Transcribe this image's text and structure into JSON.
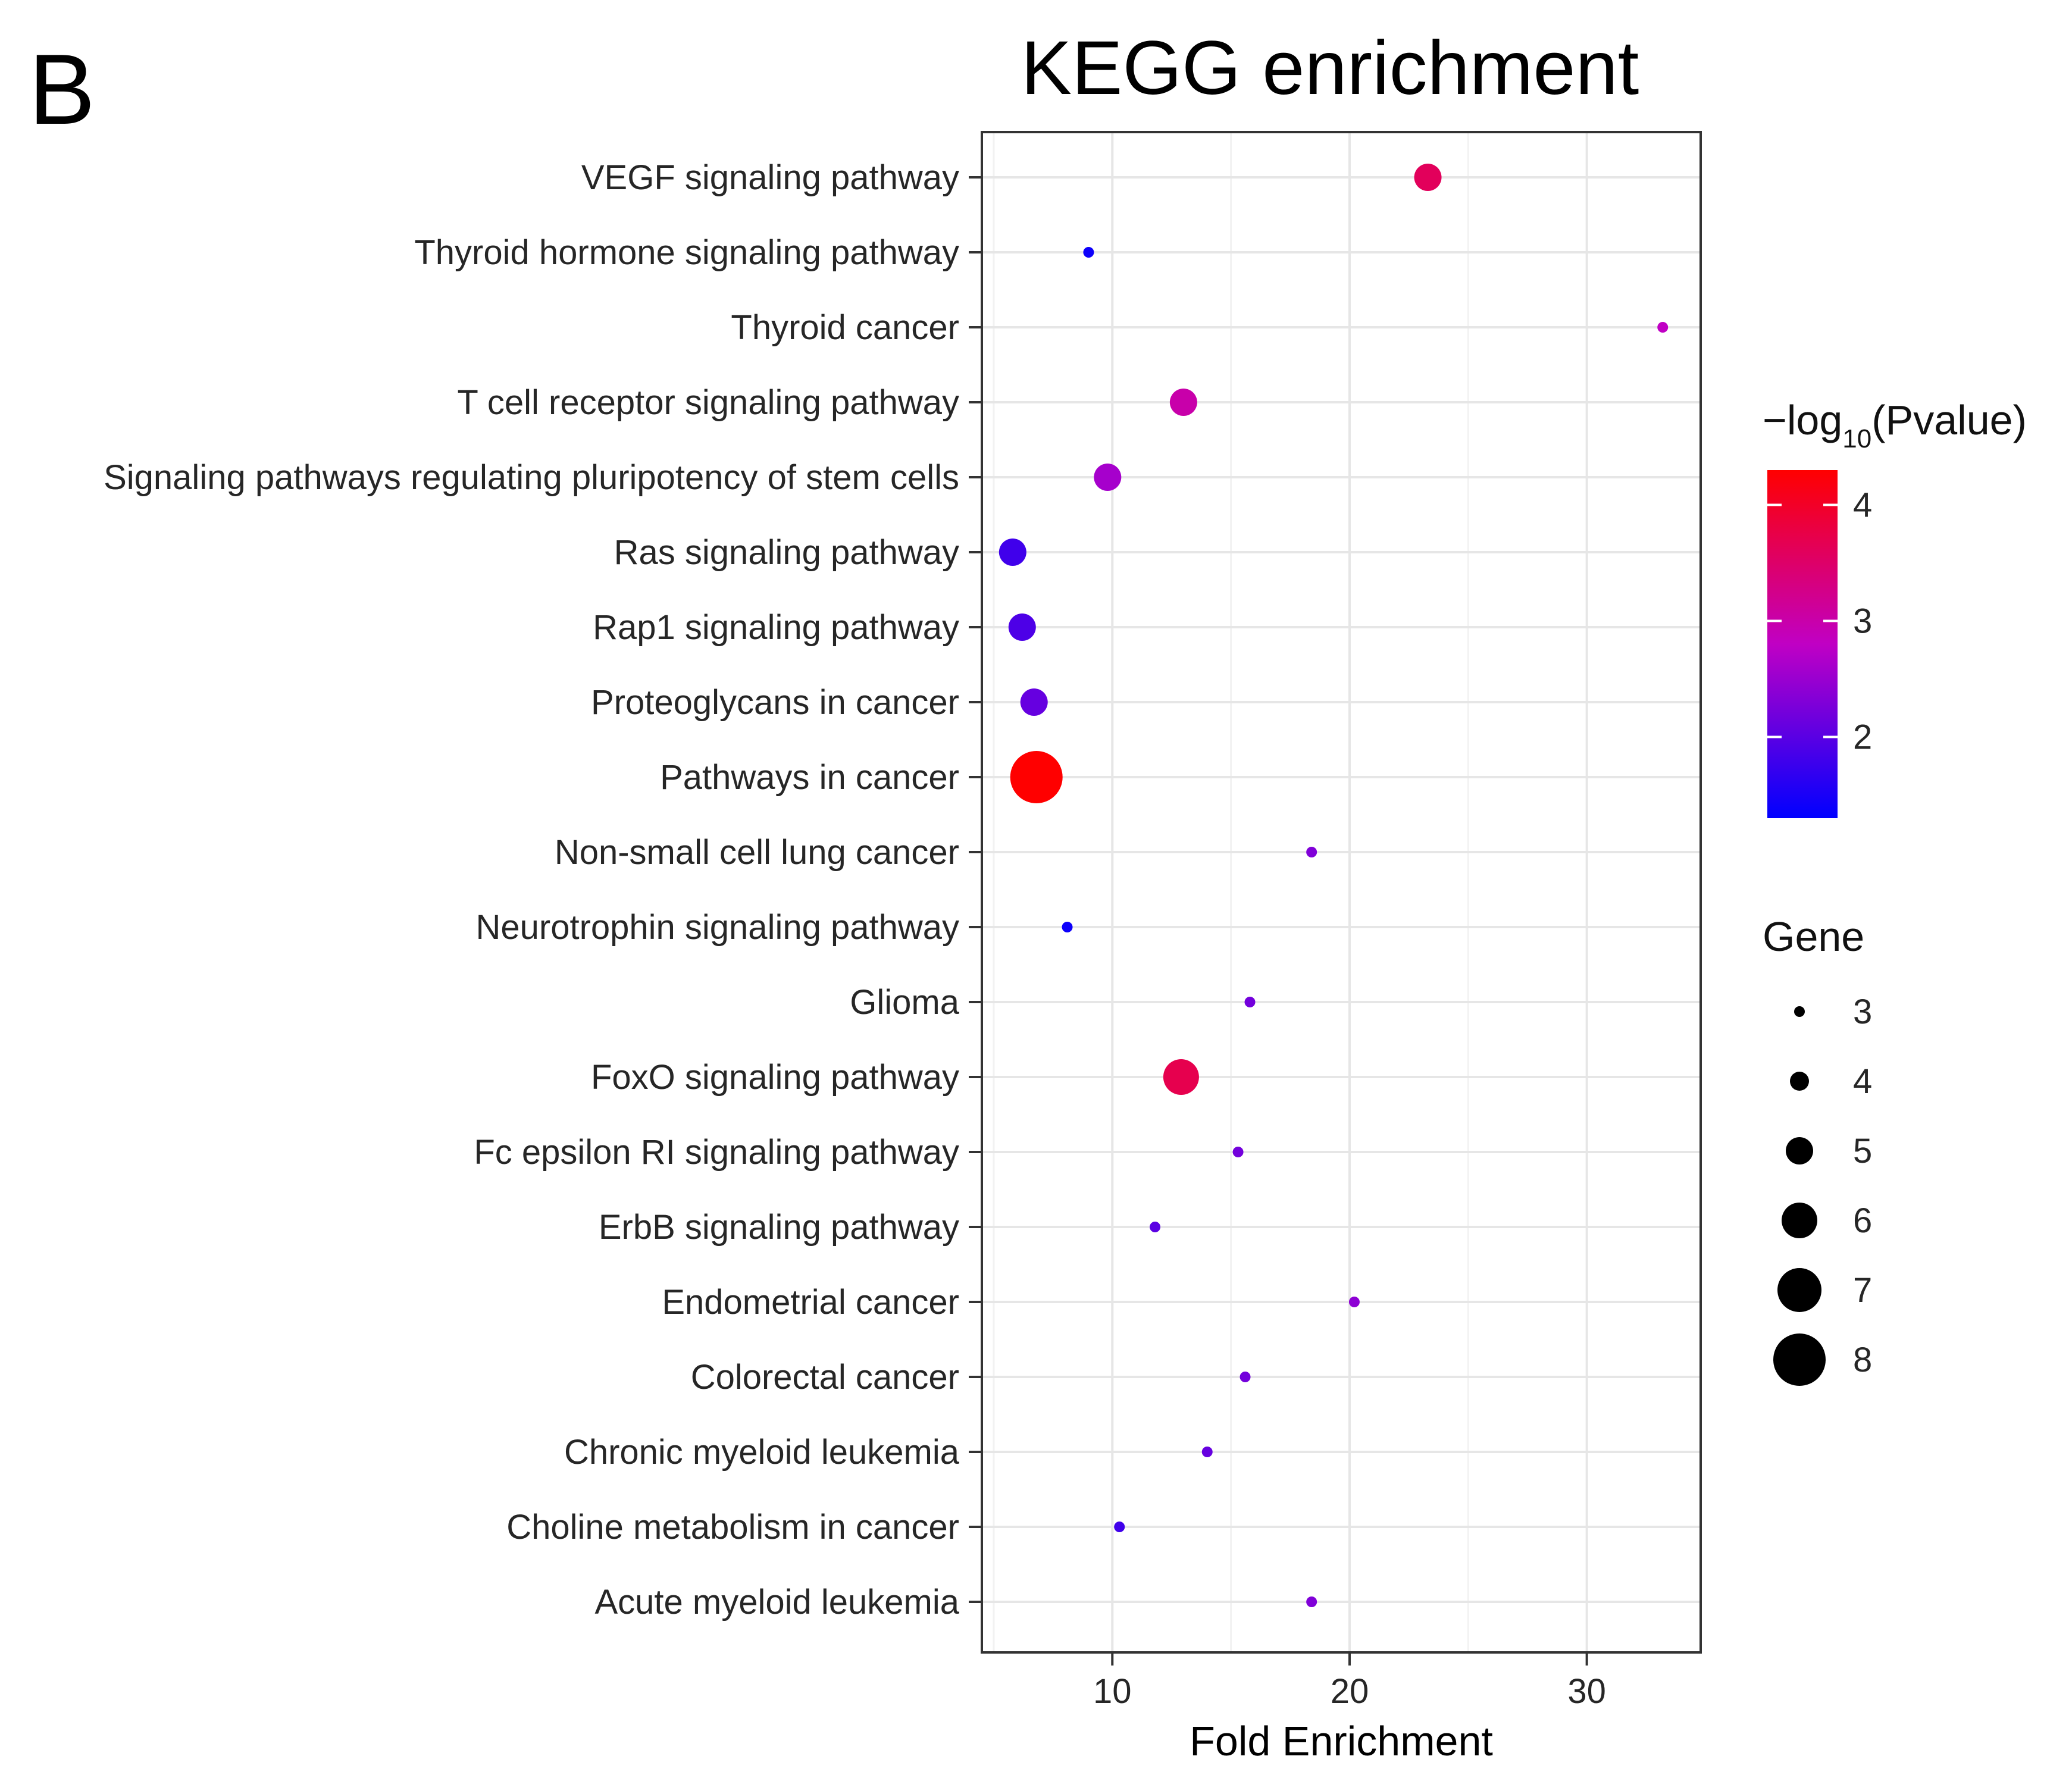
{
  "panel_label": "B",
  "chart_data": {
    "type": "scatter",
    "title": "KEGG enrichment",
    "xlabel": "Fold Enrichment",
    "ylabel": "",
    "xlim": [
      4.5,
      34.8
    ],
    "xticks": [
      10,
      20,
      30
    ],
    "grid": true,
    "categories": [
      "VEGF signaling pathway",
      "Thyroid hormone signaling pathway",
      "Thyroid cancer",
      "T cell receptor signaling pathway",
      "Signaling pathways regulating pluripotency of stem cells",
      "Ras signaling pathway",
      "Rap1 signaling pathway",
      "Proteoglycans in cancer",
      "Pathways in cancer",
      "Non-small cell lung cancer",
      "Neurotrophin signaling pathway",
      "Glioma",
      "FoxO signaling pathway",
      "Fc epsilon RI signaling pathway",
      "ErbB signaling pathway",
      "Endometrial cancer",
      "Colorectal cancer",
      "Chronic myeloid leukemia",
      "Choline metabolism in cancer",
      "Acute myeloid leukemia"
    ],
    "points": [
      {
        "pathway": "VEGF signaling pathway",
        "fold_enrichment": 23.3,
        "gene": 5,
        "neg_log10_p": 3.6
      },
      {
        "pathway": "Thyroid hormone signaling pathway",
        "fold_enrichment": 9.0,
        "gene": 3,
        "neg_log10_p": 1.4
      },
      {
        "pathway": "Thyroid cancer",
        "fold_enrichment": 33.2,
        "gene": 3,
        "neg_log10_p": 2.8
      },
      {
        "pathway": "T cell receptor signaling pathway",
        "fold_enrichment": 13.0,
        "gene": 5,
        "neg_log10_p": 3.0
      },
      {
        "pathway": "Signaling pathways regulating pluripotency of stem cells",
        "fold_enrichment": 9.8,
        "gene": 5,
        "neg_log10_p": 2.6
      },
      {
        "pathway": "Ras signaling pathway",
        "fold_enrichment": 5.8,
        "gene": 5,
        "neg_log10_p": 1.8
      },
      {
        "pathway": "Rap1 signaling pathway",
        "fold_enrichment": 6.2,
        "gene": 5,
        "neg_log10_p": 1.9
      },
      {
        "pathway": "Proteoglycans in cancer",
        "fold_enrichment": 6.7,
        "gene": 5,
        "neg_log10_p": 2.1
      },
      {
        "pathway": "Pathways in cancer",
        "fold_enrichment": 6.8,
        "gene": 8,
        "neg_log10_p": 4.3
      },
      {
        "pathway": "Non-small cell lung cancer",
        "fold_enrichment": 18.4,
        "gene": 3,
        "neg_log10_p": 2.3
      },
      {
        "pathway": "Neurotrophin signaling pathway",
        "fold_enrichment": 8.1,
        "gene": 3,
        "neg_log10_p": 1.4
      },
      {
        "pathway": "Glioma",
        "fold_enrichment": 15.8,
        "gene": 3,
        "neg_log10_p": 2.2
      },
      {
        "pathway": "FoxO signaling pathway",
        "fold_enrichment": 12.9,
        "gene": 6,
        "neg_log10_p": 3.7
      },
      {
        "pathway": "Fc epsilon RI signaling pathway",
        "fold_enrichment": 15.3,
        "gene": 3,
        "neg_log10_p": 2.2
      },
      {
        "pathway": "ErbB signaling pathway",
        "fold_enrichment": 11.8,
        "gene": 3,
        "neg_log10_p": 2.0
      },
      {
        "pathway": "Endometrial cancer",
        "fold_enrichment": 20.2,
        "gene": 3,
        "neg_log10_p": 2.4
      },
      {
        "pathway": "Colorectal cancer",
        "fold_enrichment": 15.6,
        "gene": 3,
        "neg_log10_p": 2.2
      },
      {
        "pathway": "Chronic myeloid leukemia",
        "fold_enrichment": 14.0,
        "gene": 3,
        "neg_log10_p": 2.1
      },
      {
        "pathway": "Choline metabolism in cancer",
        "fold_enrichment": 10.3,
        "gene": 3,
        "neg_log10_p": 1.8
      },
      {
        "pathway": "Acute myeloid leukemia",
        "fold_enrichment": 18.4,
        "gene": 3,
        "neg_log10_p": 2.3
      }
    ],
    "color_legend": {
      "title_prefix": "−log",
      "title_sub": "10",
      "title_suffix": "(Pvalue)",
      "range": [
        1.3,
        4.3
      ],
      "ticks": [
        2,
        3,
        4
      ],
      "colors": [
        "#0000ff",
        "#ff0000"
      ]
    },
    "size_legend": {
      "title": "Gene",
      "values": [
        3,
        4,
        5,
        6,
        7,
        8
      ],
      "color": "#000000"
    }
  }
}
